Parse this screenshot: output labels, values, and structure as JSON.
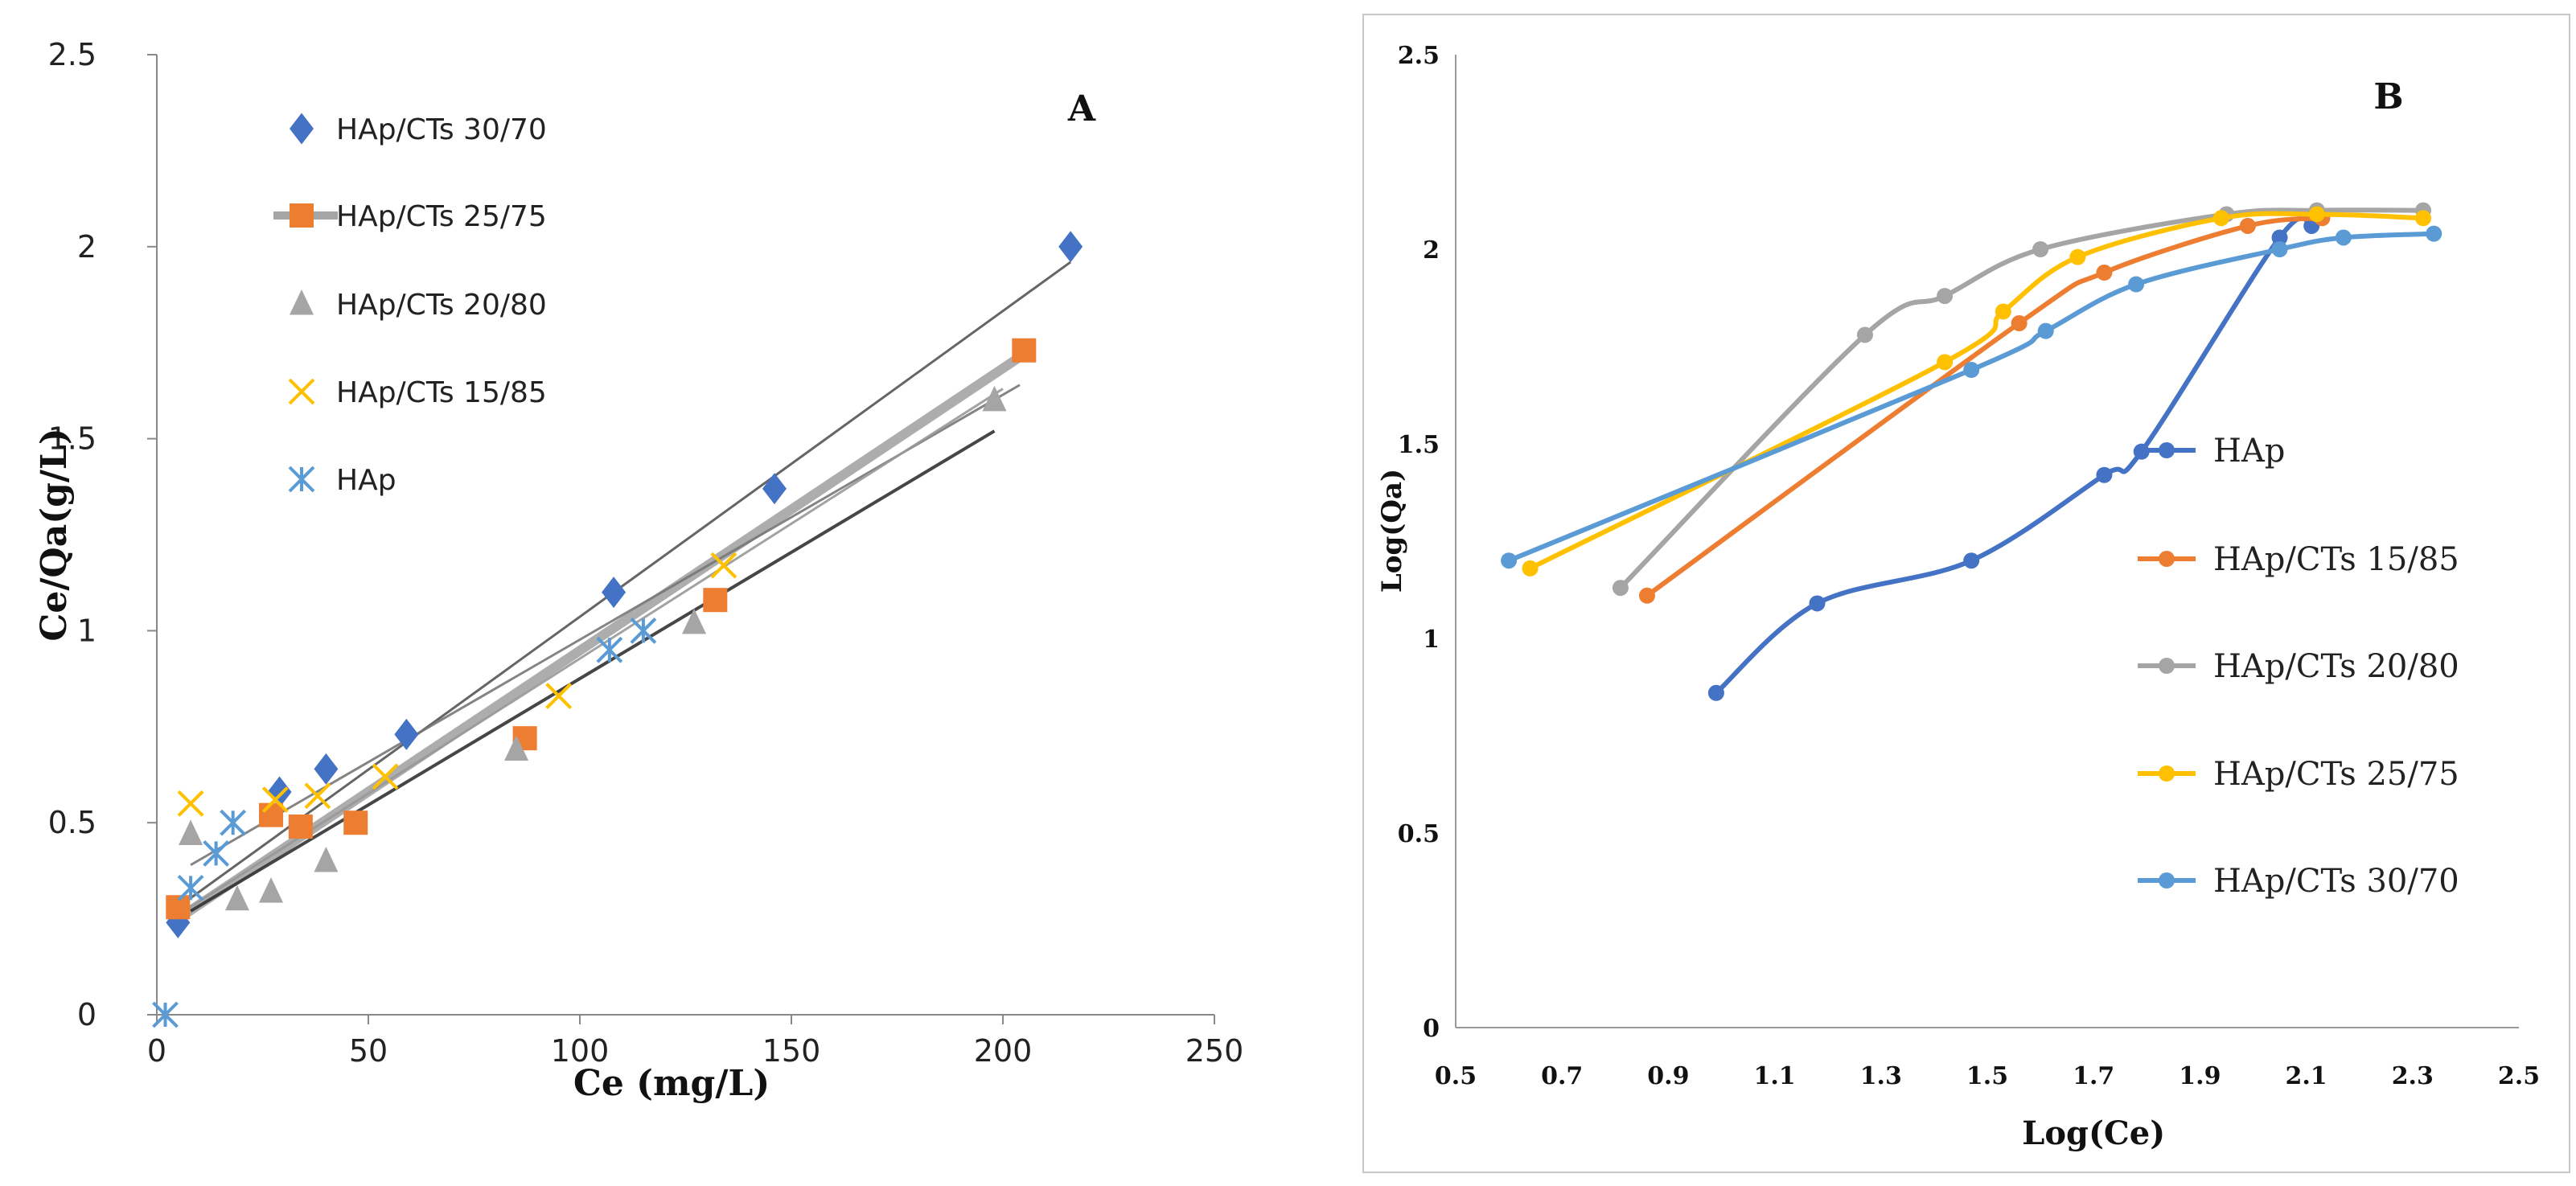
{
  "chart_data": [
    {
      "type": "scatter",
      "panel_label": "A",
      "xlabel": "Ce (mg/L)",
      "ylabel": "Ce/Qa(g/L)",
      "xlim": [
        0,
        250
      ],
      "ylim": [
        0,
        2.5
      ],
      "x_ticks": [
        "0",
        "50",
        "100",
        "150",
        "200",
        "250"
      ],
      "y_ticks": [
        "0",
        "0.5",
        "1",
        "1.5",
        "2",
        "2.5"
      ],
      "legend_position": "top-left",
      "series": [
        {
          "name": "HAp/CTs 30/70",
          "color": "#4472C4",
          "marker": "diamond",
          "x": [
            5,
            29,
            40,
            59,
            108,
            146,
            216
          ],
          "y": [
            0.24,
            0.58,
            0.64,
            0.73,
            1.1,
            1.37,
            2.0
          ],
          "fit": [
            [
              5,
              0.28
            ],
            [
              216,
              1.96
            ]
          ]
        },
        {
          "name": "HAp/CTs 25/75",
          "color": "#ED7D31",
          "marker": "square",
          "x": [
            5,
            27,
            34,
            47,
            87,
            132,
            205
          ],
          "y": [
            0.28,
            0.52,
            0.49,
            0.5,
            0.72,
            1.08,
            1.73
          ],
          "fit": [
            [
              5,
              0.25
            ],
            [
              205,
              1.72
            ]
          ]
        },
        {
          "name": "HAp/CTs 20/80",
          "color": "#A5A5A5",
          "marker": "triangle",
          "x": [
            8,
            19,
            27,
            40,
            85,
            127,
            198
          ],
          "y": [
            0.47,
            0.3,
            0.32,
            0.4,
            0.69,
            1.02,
            1.6
          ],
          "fit": [
            [
              8,
              0.27
            ],
            [
              198,
              1.52
            ]
          ]
        },
        {
          "name": "HAp/CTs 15/85",
          "color": "#FFC000",
          "marker": "x",
          "x": [
            8,
            28,
            38,
            54,
            95,
            134
          ],
          "y": [
            0.55,
            0.56,
            0.57,
            0.62,
            0.83,
            1.17
          ],
          "fit": [
            [
              8,
              0.39
            ],
            [
              204,
              1.64
            ]
          ]
        },
        {
          "name": "HAp",
          "color": "#5B9BD5",
          "marker": "asterisk",
          "x": [
            2,
            8,
            14,
            18,
            107,
            115
          ],
          "y": [
            0.0,
            0.33,
            0.42,
            0.5,
            0.95,
            1.0
          ],
          "fit": [
            [
              5,
              0.26
            ],
            [
              200,
              1.63
            ]
          ]
        }
      ]
    },
    {
      "type": "line",
      "panel_label": "B",
      "xlabel": "Log(Ce)",
      "ylabel": "Log(Qa)",
      "xlim": [
        0.5,
        2.5
      ],
      "ylim": [
        0,
        2.5
      ],
      "x_ticks": [
        "0.5",
        "0.7",
        "0.9",
        "1.1",
        "1.3",
        "1.5",
        "1.7",
        "1.9",
        "2.1",
        "2.3",
        "2.5"
      ],
      "y_ticks": [
        "0",
        "0.5",
        "1",
        "1.5",
        "2",
        "2.5"
      ],
      "legend_position": "right",
      "series": [
        {
          "name": "HAp",
          "color": "#4472C4",
          "x": [
            0.99,
            1.18,
            1.47,
            1.72,
            1.79,
            2.05,
            2.11
          ],
          "y": [
            0.86,
            1.09,
            1.2,
            1.42,
            1.48,
            2.03,
            2.06
          ]
        },
        {
          "name": "HAp/CTs 15/85",
          "color": "#ED7D31",
          "x": [
            0.86,
            1.56,
            1.72,
            1.99,
            2.13
          ],
          "y": [
            1.11,
            1.81,
            1.94,
            2.06,
            2.08
          ]
        },
        {
          "name": "HAp/CTs 20/80",
          "color": "#A5A5A5",
          "x": [
            0.81,
            1.27,
            1.42,
            1.6,
            1.95,
            2.12,
            2.32
          ],
          "y": [
            1.13,
            1.78,
            1.88,
            2.0,
            2.09,
            2.1,
            2.1
          ]
        },
        {
          "name": "HAp/CTs 25/75",
          "color": "#FFC000",
          "x": [
            0.64,
            1.42,
            1.53,
            1.67,
            1.94,
            2.12,
            2.32
          ],
          "y": [
            1.18,
            1.71,
            1.84,
            1.98,
            2.08,
            2.09,
            2.08
          ]
        },
        {
          "name": "HAp/CTs 30/70",
          "color": "#5B9BD5",
          "x": [
            0.6,
            1.47,
            1.61,
            1.78,
            2.05,
            2.17,
            2.34
          ],
          "y": [
            1.2,
            1.69,
            1.79,
            1.91,
            2.0,
            2.03,
            2.04
          ]
        }
      ]
    }
  ]
}
